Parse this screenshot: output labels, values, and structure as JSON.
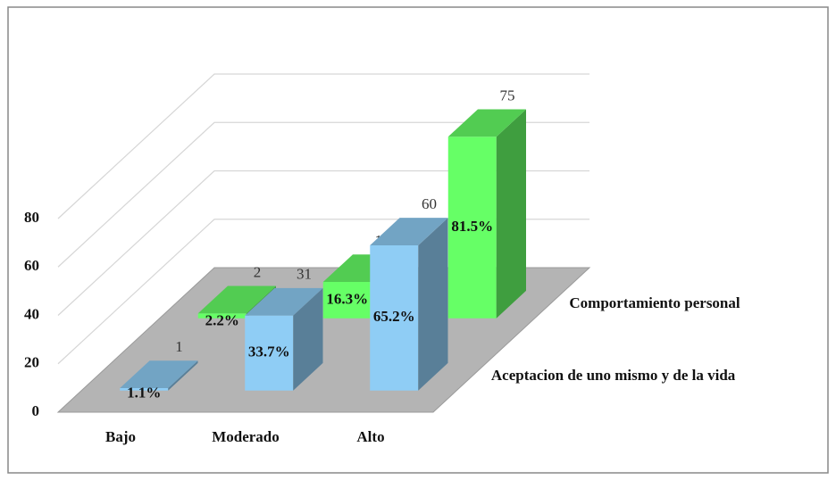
{
  "chart_data": {
    "type": "bar3d",
    "categories": [
      "Bajo",
      "Moderado",
      "Alto"
    ],
    "series": [
      {
        "name": "Aceptacion de uno mismo y de la vida",
        "color": "#8fcdf5",
        "values": [
          1,
          31,
          60
        ],
        "percent_labels": [
          "1.1%",
          "33.7%",
          "65.2%"
        ]
      },
      {
        "name": "Comportamiento personal",
        "color": "#66ff66",
        "values": [
          2,
          15,
          75
        ],
        "percent_labels": [
          "2.2%",
          "16.3%",
          "81.5%"
        ]
      }
    ],
    "ylim": [
      0,
      80
    ],
    "yticks": [
      0,
      20,
      40,
      60,
      80
    ],
    "grid": true
  }
}
